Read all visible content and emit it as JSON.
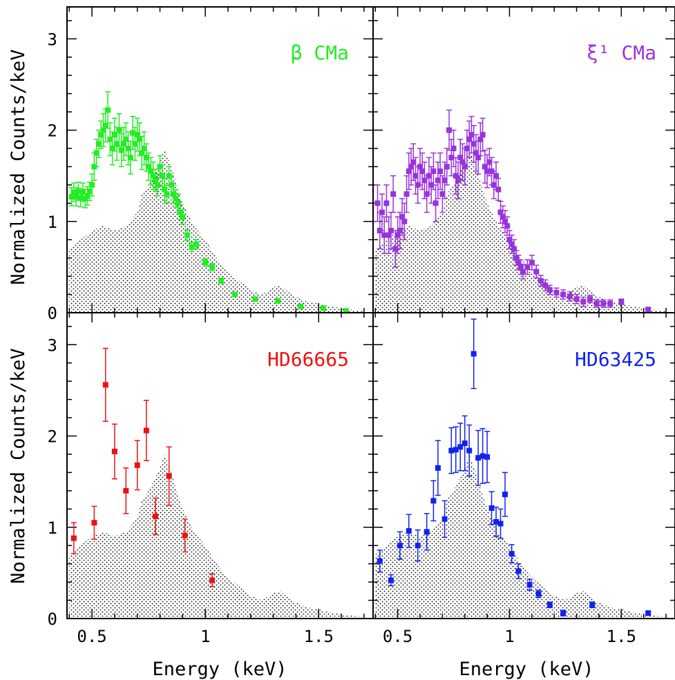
{
  "chart_data": [
    {
      "type": "scatter",
      "panel": "top-left",
      "label": "β CMa",
      "label_color": "#22ee22",
      "xlabel": "",
      "ylabel": "Normalized Counts/keV",
      "xlim": [
        0.39,
        1.74
      ],
      "ylim": [
        0,
        3.35
      ],
      "xticks": [
        0.5,
        1,
        1.5
      ],
      "xtick_labels": [],
      "yticks": [
        0,
        1,
        2,
        3
      ],
      "ytick_labels": [
        "0",
        "1",
        "2",
        "3"
      ],
      "series": [
        {
          "color": "#22ee22",
          "x": [
            0.41,
            0.42,
            0.43,
            0.44,
            0.45,
            0.46,
            0.47,
            0.48,
            0.49,
            0.5,
            0.51,
            0.52,
            0.53,
            0.54,
            0.55,
            0.56,
            0.57,
            0.58,
            0.59,
            0.6,
            0.61,
            0.62,
            0.63,
            0.64,
            0.65,
            0.66,
            0.67,
            0.68,
            0.69,
            0.7,
            0.71,
            0.72,
            0.73,
            0.74,
            0.75,
            0.76,
            0.77,
            0.78,
            0.79,
            0.8,
            0.81,
            0.82,
            0.83,
            0.84,
            0.85,
            0.86,
            0.87,
            0.88,
            0.89,
            0.9,
            0.92,
            0.94,
            0.96,
            1.0,
            1.03,
            1.07,
            1.13,
            1.22,
            1.32,
            1.42,
            1.52,
            1.62
          ],
          "y": [
            1.27,
            1.32,
            1.27,
            1.33,
            1.26,
            1.32,
            1.25,
            1.28,
            1.33,
            1.4,
            1.6,
            1.75,
            1.85,
            1.95,
            2.0,
            2.05,
            2.22,
            1.9,
            1.8,
            1.95,
            1.85,
            2.0,
            1.78,
            1.85,
            1.9,
            1.8,
            1.7,
            1.97,
            1.85,
            1.95,
            1.9,
            1.75,
            1.8,
            1.7,
            1.6,
            1.55,
            1.5,
            1.45,
            1.4,
            1.6,
            1.5,
            1.35,
            1.3,
            1.5,
            1.4,
            1.3,
            1.25,
            1.2,
            1.1,
            1.05,
            0.85,
            0.72,
            0.75,
            0.55,
            0.5,
            0.35,
            0.2,
            0.15,
            0.13,
            0.07,
            0.05,
            0.02
          ],
          "err": [
            0.1,
            0.1,
            0.1,
            0.1,
            0.1,
            0.1,
            0.1,
            0.1,
            0.1,
            0.12,
            0.15,
            0.15,
            0.15,
            0.15,
            0.18,
            0.18,
            0.2,
            0.18,
            0.18,
            0.18,
            0.18,
            0.18,
            0.18,
            0.18,
            0.18,
            0.18,
            0.18,
            0.18,
            0.18,
            0.18,
            0.18,
            0.18,
            0.18,
            0.15,
            0.15,
            0.15,
            0.15,
            0.12,
            0.12,
            0.12,
            0.12,
            0.12,
            0.1,
            0.1,
            0.1,
            0.1,
            0.1,
            0.1,
            0.08,
            0.08,
            0.06,
            0.05,
            0.05,
            0.04,
            0.04,
            0.03,
            0.02,
            0.02,
            0.02,
            0.02,
            0.02,
            0.02
          ]
        }
      ],
      "model": {
        "x": [
          0.4,
          0.45,
          0.5,
          0.55,
          0.6,
          0.65,
          0.7,
          0.72,
          0.75,
          0.78,
          0.8,
          0.82,
          0.85,
          0.88,
          0.9,
          0.95,
          1.0,
          1.05,
          1.1,
          1.15,
          1.2,
          1.25,
          1.3,
          1.33,
          1.38,
          1.45,
          1.5,
          1.55,
          1.6,
          1.65,
          1.7
        ],
        "y": [
          0.7,
          0.8,
          0.9,
          0.95,
          0.9,
          0.95,
          1.1,
          1.3,
          1.4,
          1.55,
          1.65,
          1.8,
          1.6,
          1.35,
          1.2,
          0.95,
          0.8,
          0.6,
          0.45,
          0.35,
          0.25,
          0.2,
          0.28,
          0.3,
          0.2,
          0.12,
          0.1,
          0.07,
          0.05,
          0.03,
          0.02
        ]
      }
    },
    {
      "type": "scatter",
      "panel": "top-right",
      "label": "ξ¹ CMa",
      "label_color": "#9933dd",
      "xlabel": "",
      "ylabel": "",
      "xlim": [
        0.39,
        1.74
      ],
      "ylim": [
        0,
        3.35
      ],
      "xticks": [
        0.5,
        1,
        1.5
      ],
      "xtick_labels": [],
      "yticks": [
        0,
        1,
        2,
        3
      ],
      "ytick_labels": [],
      "series": [
        {
          "color": "#9933dd",
          "x": [
            0.41,
            0.42,
            0.43,
            0.44,
            0.45,
            0.46,
            0.47,
            0.48,
            0.49,
            0.5,
            0.51,
            0.52,
            0.53,
            0.54,
            0.55,
            0.56,
            0.57,
            0.58,
            0.59,
            0.6,
            0.61,
            0.62,
            0.63,
            0.64,
            0.65,
            0.66,
            0.67,
            0.68,
            0.69,
            0.7,
            0.71,
            0.72,
            0.73,
            0.74,
            0.75,
            0.76,
            0.77,
            0.78,
            0.79,
            0.8,
            0.81,
            0.82,
            0.83,
            0.84,
            0.85,
            0.86,
            0.87,
            0.88,
            0.89,
            0.9,
            0.91,
            0.92,
            0.93,
            0.94,
            0.95,
            0.96,
            0.97,
            0.98,
            0.99,
            1.0,
            1.01,
            1.02,
            1.03,
            1.04,
            1.05,
            1.06,
            1.08,
            1.1,
            1.12,
            1.14,
            1.16,
            1.18,
            1.21,
            1.24,
            1.27,
            1.3,
            1.33,
            1.36,
            1.39,
            1.42,
            1.45,
            1.5,
            1.62
          ],
          "y": [
            1.2,
            0.9,
            1.1,
            0.85,
            1.2,
            0.85,
            0.9,
            1.3,
            0.7,
            0.85,
            0.9,
            1.05,
            1.0,
            1.3,
            1.55,
            1.6,
            1.65,
            1.5,
            1.4,
            1.6,
            1.55,
            1.45,
            1.3,
            1.5,
            1.4,
            1.55,
            1.2,
            1.45,
            1.55,
            1.3,
            1.45,
            1.6,
            2.0,
            1.7,
            1.8,
            1.5,
            1.45,
            1.7,
            1.65,
            1.6,
            1.8,
            1.9,
            1.95,
            1.85,
            1.75,
            1.7,
            1.9,
            1.95,
            1.6,
            1.55,
            1.65,
            1.55,
            1.4,
            1.5,
            1.35,
            1.1,
            1.05,
            1.0,
            0.95,
            0.8,
            0.75,
            0.7,
            0.6,
            0.55,
            0.5,
            0.45,
            0.5,
            0.55,
            0.45,
            0.35,
            0.3,
            0.25,
            0.22,
            0.2,
            0.18,
            0.15,
            0.12,
            0.15,
            0.1,
            0.1,
            0.1,
            0.12,
            0.03
          ],
          "err": [
            0.2,
            0.2,
            0.2,
            0.2,
            0.2,
            0.2,
            0.2,
            0.2,
            0.2,
            0.2,
            0.2,
            0.2,
            0.2,
            0.2,
            0.2,
            0.2,
            0.2,
            0.2,
            0.2,
            0.2,
            0.2,
            0.2,
            0.2,
            0.2,
            0.2,
            0.2,
            0.2,
            0.2,
            0.2,
            0.2,
            0.2,
            0.2,
            0.22,
            0.2,
            0.2,
            0.2,
            0.2,
            0.2,
            0.2,
            0.2,
            0.2,
            0.2,
            0.2,
            0.2,
            0.2,
            0.18,
            0.18,
            0.18,
            0.18,
            0.18,
            0.15,
            0.15,
            0.15,
            0.15,
            0.12,
            0.12,
            0.12,
            0.12,
            0.1,
            0.1,
            0.1,
            0.1,
            0.08,
            0.08,
            0.08,
            0.08,
            0.08,
            0.08,
            0.07,
            0.06,
            0.06,
            0.05,
            0.05,
            0.05,
            0.05,
            0.05,
            0.05,
            0.04,
            0.04,
            0.04,
            0.04,
            0.03,
            0.03
          ]
        }
      ],
      "model": {
        "x": [
          0.4,
          0.45,
          0.5,
          0.55,
          0.6,
          0.65,
          0.7,
          0.72,
          0.75,
          0.78,
          0.8,
          0.82,
          0.85,
          0.88,
          0.9,
          0.95,
          1.0,
          1.05,
          1.1,
          1.15,
          1.2,
          1.25,
          1.3,
          1.33,
          1.38,
          1.45,
          1.5,
          1.55,
          1.6,
          1.65,
          1.7
        ],
        "y": [
          0.7,
          0.8,
          0.9,
          0.95,
          0.9,
          0.95,
          1.1,
          1.3,
          1.4,
          1.55,
          1.65,
          1.8,
          1.6,
          1.35,
          1.2,
          0.95,
          0.8,
          0.6,
          0.45,
          0.35,
          0.25,
          0.2,
          0.28,
          0.3,
          0.2,
          0.12,
          0.1,
          0.07,
          0.05,
          0.03,
          0.02
        ]
      }
    },
    {
      "type": "scatter",
      "panel": "bottom-left",
      "label": "HD66665",
      "label_color": "#ee1111",
      "xlabel": "Energy (keV)",
      "ylabel": "Normalized Counts/keV",
      "xlim": [
        0.39,
        1.74
      ],
      "ylim": [
        0,
        3.35
      ],
      "xticks": [
        0.5,
        1,
        1.5
      ],
      "xtick_labels": [
        "0.5",
        "1",
        "1.5"
      ],
      "yticks": [
        0,
        1,
        2,
        3
      ],
      "ytick_labels": [
        "0",
        "1",
        "2",
        "3"
      ],
      "series": [
        {
          "color": "#ee1111",
          "x": [
            0.42,
            0.51,
            0.56,
            0.6,
            0.65,
            0.7,
            0.74,
            0.78,
            0.84,
            0.91,
            1.03
          ],
          "y": [
            0.88,
            1.05,
            2.56,
            1.83,
            1.4,
            1.68,
            2.06,
            1.12,
            1.56,
            0.91,
            0.42
          ],
          "err": [
            0.17,
            0.18,
            0.4,
            0.3,
            0.25,
            0.27,
            0.33,
            0.2,
            0.32,
            0.18,
            0.07
          ]
        }
      ],
      "model": {
        "x": [
          0.4,
          0.45,
          0.5,
          0.55,
          0.6,
          0.65,
          0.7,
          0.72,
          0.75,
          0.78,
          0.8,
          0.82,
          0.85,
          0.88,
          0.9,
          0.95,
          1.0,
          1.05,
          1.1,
          1.15,
          1.2,
          1.25,
          1.3,
          1.33,
          1.38,
          1.45,
          1.5,
          1.55,
          1.6,
          1.65,
          1.7
        ],
        "y": [
          0.7,
          0.8,
          0.9,
          0.95,
          0.9,
          0.95,
          1.1,
          1.3,
          1.4,
          1.55,
          1.65,
          1.8,
          1.6,
          1.35,
          1.2,
          0.95,
          0.8,
          0.6,
          0.45,
          0.35,
          0.25,
          0.2,
          0.28,
          0.3,
          0.2,
          0.12,
          0.1,
          0.07,
          0.05,
          0.03,
          0.02
        ]
      }
    },
    {
      "type": "scatter",
      "panel": "bottom-right",
      "label": "HD63425",
      "label_color": "#1122ee",
      "xlabel": "Energy (keV)",
      "ylabel": "",
      "xlim": [
        0.39,
        1.74
      ],
      "ylim": [
        0,
        3.35
      ],
      "xticks": [
        0.5,
        1,
        1.5
      ],
      "xtick_labels": [
        "0.5",
        "1",
        "1.5"
      ],
      "yticks": [
        0,
        1,
        2,
        3
      ],
      "ytick_labels": [],
      "series": [
        {
          "color": "#1122ee",
          "x": [
            0.42,
            0.47,
            0.51,
            0.55,
            0.59,
            0.63,
            0.66,
            0.68,
            0.71,
            0.74,
            0.76,
            0.78,
            0.8,
            0.82,
            0.84,
            0.86,
            0.88,
            0.9,
            0.92,
            0.94,
            0.96,
            0.98,
            1.01,
            1.04,
            1.09,
            1.13,
            1.18,
            1.24,
            1.37,
            1.62
          ],
          "y": [
            0.63,
            0.42,
            0.8,
            0.96,
            0.8,
            0.95,
            1.29,
            1.65,
            1.09,
            1.84,
            1.85,
            1.88,
            1.92,
            1.84,
            2.9,
            1.76,
            1.78,
            1.77,
            1.21,
            1.06,
            1.04,
            1.36,
            0.71,
            0.52,
            0.37,
            0.27,
            0.15,
            0.06,
            0.15,
            0.06
          ],
          "err": [
            0.12,
            0.06,
            0.15,
            0.18,
            0.17,
            0.2,
            0.22,
            0.3,
            0.2,
            0.25,
            0.25,
            0.26,
            0.3,
            0.28,
            0.38,
            0.3,
            0.3,
            0.28,
            0.18,
            0.16,
            0.16,
            0.24,
            0.1,
            0.08,
            0.06,
            0.04,
            0.03,
            0.03,
            0.03,
            0.02
          ]
        }
      ],
      "model": {
        "x": [
          0.4,
          0.45,
          0.5,
          0.55,
          0.6,
          0.65,
          0.7,
          0.72,
          0.75,
          0.78,
          0.8,
          0.82,
          0.85,
          0.88,
          0.9,
          0.95,
          1.0,
          1.05,
          1.1,
          1.15,
          1.2,
          1.25,
          1.3,
          1.33,
          1.38,
          1.45,
          1.5,
          1.55,
          1.6,
          1.65,
          1.7
        ],
        "y": [
          0.7,
          0.8,
          0.9,
          0.95,
          0.9,
          0.95,
          1.1,
          1.3,
          1.4,
          1.55,
          1.65,
          1.8,
          1.6,
          1.35,
          1.2,
          0.95,
          0.8,
          0.6,
          0.45,
          0.35,
          0.25,
          0.2,
          0.28,
          0.3,
          0.2,
          0.12,
          0.1,
          0.07,
          0.05,
          0.03,
          0.02
        ]
      }
    }
  ]
}
